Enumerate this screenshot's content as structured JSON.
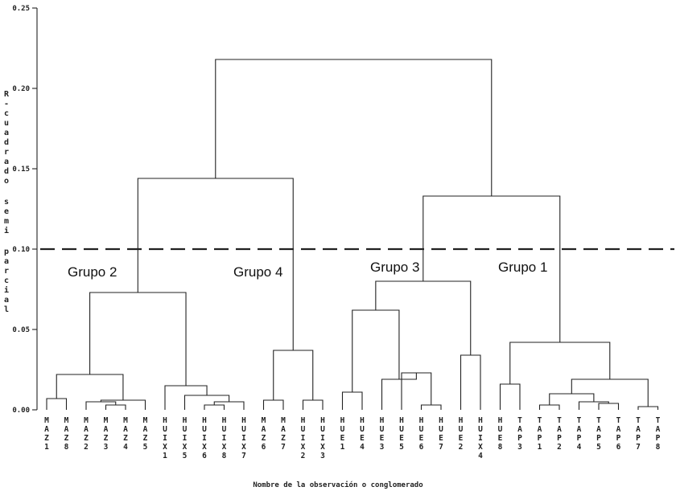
{
  "chart_data": {
    "type": "dendrogram",
    "title": "",
    "ylabel": "R-cuadrado semi parcial",
    "xlabel": "Nombre de la observación o conglomerado",
    "ylim": [
      0,
      0.25
    ],
    "yticks": [
      {
        "value": 0.0,
        "label": "0.00"
      },
      {
        "value": 0.05,
        "label": "0.05"
      },
      {
        "value": 0.1,
        "label": "0.10"
      },
      {
        "value": 0.15,
        "label": "0.15"
      },
      {
        "value": 0.2,
        "label": "0.20"
      },
      {
        "value": 0.25,
        "label": "0.25"
      }
    ],
    "cut_line": {
      "value": 0.1,
      "style": "dashed"
    },
    "leaves": [
      "MAZ1",
      "MAZ8",
      "MAZ2",
      "MAZ3",
      "MAZ4",
      "MAZ5",
      "HUIX1",
      "HUIX5",
      "HUIX6",
      "HUIX8",
      "HUIX7",
      "MAZ6",
      "MAZ7",
      "HUIX2",
      "HUIX3",
      "HUE1",
      "HUE4",
      "HUE3",
      "HUE5",
      "HUE6",
      "HUE7",
      "HUE2",
      "HUIX4",
      "HUE8",
      "TAP3",
      "TAP1",
      "TAP2",
      "TAP4",
      "TAP5",
      "TAP6",
      "TAP7",
      "TAP8"
    ],
    "merges": [
      {
        "a": "L0",
        "b": "L1",
        "h": 0.007
      },
      {
        "a": "L3",
        "b": "L4",
        "h": 0.003
      },
      {
        "a": "L2",
        "b": "M1",
        "h": 0.005
      },
      {
        "a": "M2",
        "b": "L5",
        "h": 0.006
      },
      {
        "a": "M0",
        "b": "M3",
        "h": 0.022
      },
      {
        "a": "L8",
        "b": "L9",
        "h": 0.003
      },
      {
        "a": "M5",
        "b": "L10",
        "h": 0.005
      },
      {
        "a": "L7",
        "b": "M6",
        "h": 0.009
      },
      {
        "a": "L6",
        "b": "M7",
        "h": 0.015
      },
      {
        "a": "M4",
        "b": "M8",
        "h": 0.073
      },
      {
        "a": "L11",
        "b": "L12",
        "h": 0.006
      },
      {
        "a": "L13",
        "b": "L14",
        "h": 0.006
      },
      {
        "a": "M10",
        "b": "M11",
        "h": 0.037
      },
      {
        "a": "M9",
        "b": "M12",
        "h": 0.144
      },
      {
        "a": "L15",
        "b": "L16",
        "h": 0.011
      },
      {
        "a": "L19",
        "b": "L20",
        "h": 0.003
      },
      {
        "a": "L18",
        "b": "M15",
        "h": 0.023
      },
      {
        "a": "L17",
        "b": "M16",
        "h": 0.019
      },
      {
        "a": "M14",
        "b": "M17",
        "h": 0.062
      },
      {
        "a": "L21",
        "b": "L22",
        "h": 0.034
      },
      {
        "a": "M18",
        "b": "M19",
        "h": 0.08
      },
      {
        "a": "L23",
        "b": "L24",
        "h": 0.016
      },
      {
        "a": "L25",
        "b": "L26",
        "h": 0.003
      },
      {
        "a": "L28",
        "b": "L29",
        "h": 0.004
      },
      {
        "a": "L27",
        "b": "M23",
        "h": 0.005
      },
      {
        "a": "M22",
        "b": "M24",
        "h": 0.01
      },
      {
        "a": "L30",
        "b": "L31",
        "h": 0.002
      },
      {
        "a": "M25",
        "b": "M26",
        "h": 0.019
      },
      {
        "a": "M21",
        "b": "M27",
        "h": 0.042
      },
      {
        "a": "M20",
        "b": "M28",
        "h": 0.133
      },
      {
        "a": "M13",
        "b": "M29",
        "h": 0.218
      }
    ],
    "annotations": [
      "Grupo 2",
      "Grupo 4",
      "Grupo 3",
      "Grupo 1"
    ]
  }
}
